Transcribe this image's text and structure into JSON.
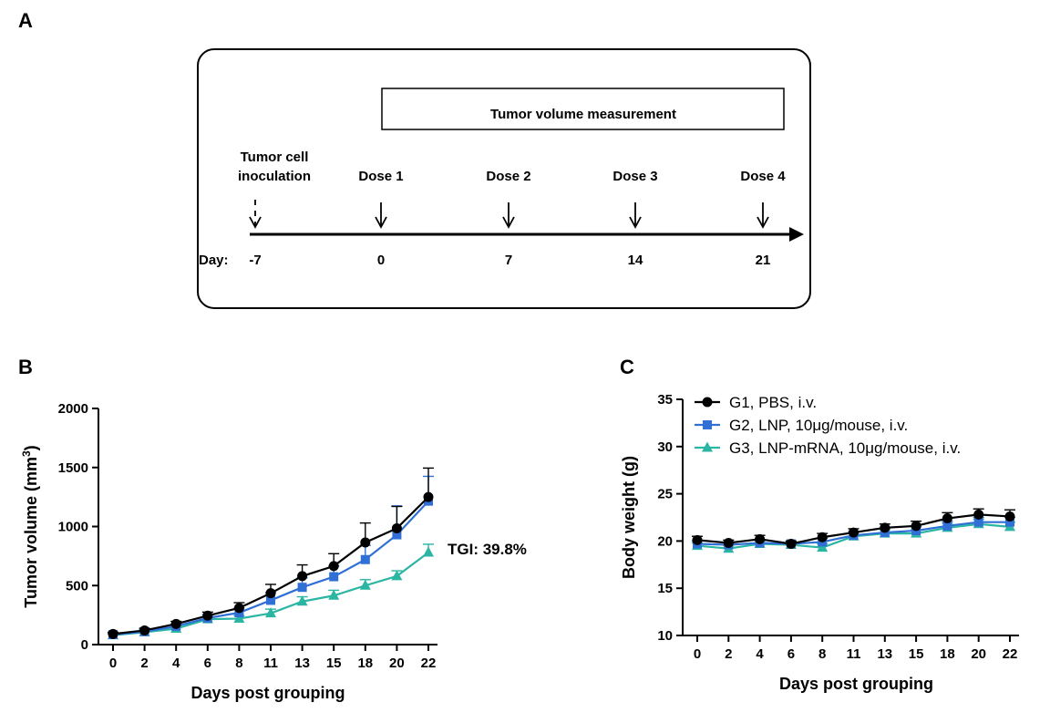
{
  "panel_labels": {
    "a": "A",
    "b": "B",
    "c": "C"
  },
  "timeline": {
    "measurement_label": "Tumor volume measurement",
    "inoculation_label_line1": "Tumor cell",
    "inoculation_label_line2": "inoculation",
    "day_prefix": "Day:",
    "events": [
      {
        "label": "",
        "day": "-7",
        "dashed": true
      },
      {
        "label": "Dose 1",
        "day": "0",
        "dashed": false
      },
      {
        "label": "Dose 2",
        "day": "7",
        "dashed": false
      },
      {
        "label": "Dose 3",
        "day": "14",
        "dashed": false
      },
      {
        "label": "Dose 4",
        "day": "21",
        "dashed": false
      }
    ]
  },
  "chart_data": [
    {
      "id": "B",
      "type": "line",
      "xlabel": "Days post grouping",
      "ylabel_main": "Tumor volume (mm",
      "ylabel_sup": "3",
      "ylabel_end": ")",
      "categories": [
        "0",
        "2",
        "4",
        "6",
        "8",
        "11",
        "13",
        "15",
        "18",
        "20",
        "22"
      ],
      "ylim": [
        0,
        2000
      ],
      "yticks": [
        0,
        500,
        1000,
        1500,
        2000
      ],
      "annotation": "TGI: 39.8%",
      "series": [
        {
          "key": "g1",
          "color": "#000000",
          "marker": "circle",
          "values": [
            90,
            120,
            175,
            245,
            310,
            435,
            580,
            665,
            865,
            985,
            1250
          ],
          "errors": [
            15,
            18,
            22,
            30,
            45,
            75,
            95,
            105,
            165,
            185,
            245
          ]
        },
        {
          "key": "g2",
          "color": "#2f6fd6",
          "marker": "square",
          "values": [
            85,
            110,
            155,
            225,
            270,
            375,
            485,
            575,
            720,
            930,
            1215
          ],
          "errors": [
            14,
            16,
            20,
            28,
            40,
            65,
            80,
            90,
            120,
            245,
            210
          ]
        },
        {
          "key": "g3",
          "color": "#2bb5a3",
          "marker": "triangle",
          "values": [
            80,
            105,
            135,
            215,
            220,
            265,
            365,
            415,
            500,
            580,
            780
          ],
          "errors": [
            10,
            14,
            16,
            20,
            25,
            35,
            40,
            45,
            50,
            45,
            70
          ]
        }
      ]
    },
    {
      "id": "C",
      "type": "line",
      "xlabel": "Days post grouping",
      "ylabel": "Body weight (g)",
      "categories": [
        "0",
        "2",
        "4",
        "6",
        "8",
        "11",
        "13",
        "15",
        "18",
        "20",
        "22"
      ],
      "ylim": [
        10,
        35
      ],
      "yticks": [
        10,
        15,
        20,
        25,
        30,
        35
      ],
      "legend_position": "top-right",
      "series": [
        {
          "key": "g1",
          "name": "G1, PBS, i.v.",
          "color": "#000000",
          "marker": "circle",
          "values": [
            20.1,
            19.8,
            20.2,
            19.7,
            20.4,
            20.9,
            21.4,
            21.6,
            22.4,
            22.8,
            22.6
          ],
          "errors": [
            0.4,
            0.3,
            0.4,
            0.3,
            0.4,
            0.4,
            0.4,
            0.5,
            0.6,
            0.6,
            0.7
          ]
        },
        {
          "key": "g2",
          "name": "G2, LNP, 10μg/mouse, i.v.",
          "color": "#2f6fd6",
          "marker": "square",
          "values": [
            19.7,
            19.6,
            19.8,
            19.7,
            19.9,
            20.6,
            20.9,
            21.1,
            21.6,
            22.0,
            22.0
          ],
          "errors": [
            0.3,
            0.3,
            0.3,
            0.3,
            0.4,
            0.4,
            0.4,
            0.4,
            0.5,
            0.5,
            0.5
          ]
        },
        {
          "key": "g3",
          "name": "G3, LNP-mRNA, 10μg/mouse, i.v.",
          "color": "#2bb5a3",
          "marker": "triangle",
          "values": [
            19.5,
            19.2,
            19.7,
            19.6,
            19.3,
            20.5,
            20.8,
            20.8,
            21.4,
            21.8,
            21.5
          ],
          "errors": [
            0.3,
            0.3,
            0.3,
            0.3,
            0.4,
            0.4,
            0.4,
            0.4,
            0.5,
            0.5,
            0.5
          ]
        }
      ]
    }
  ]
}
